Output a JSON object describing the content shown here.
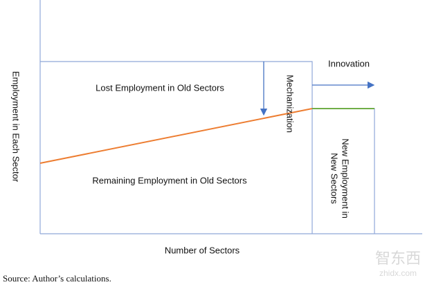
{
  "diagram": {
    "y_axis_label": "Employment in Each  Sector",
    "x_axis_label": "Number of Sectors",
    "lost_label": "Lost Employment in Old Sectors",
    "remaining_label": "Remaining  Employment in Old Sectors",
    "mechanization_label": "Mechanization",
    "innovation_label": "Innovation",
    "new_label_lines": [
      "New Employment in",
      "New Sectors"
    ]
  },
  "source": "Source: Author’s calculations.",
  "watermark": {
    "brand": "智东西",
    "url": "zhidx.com"
  }
}
